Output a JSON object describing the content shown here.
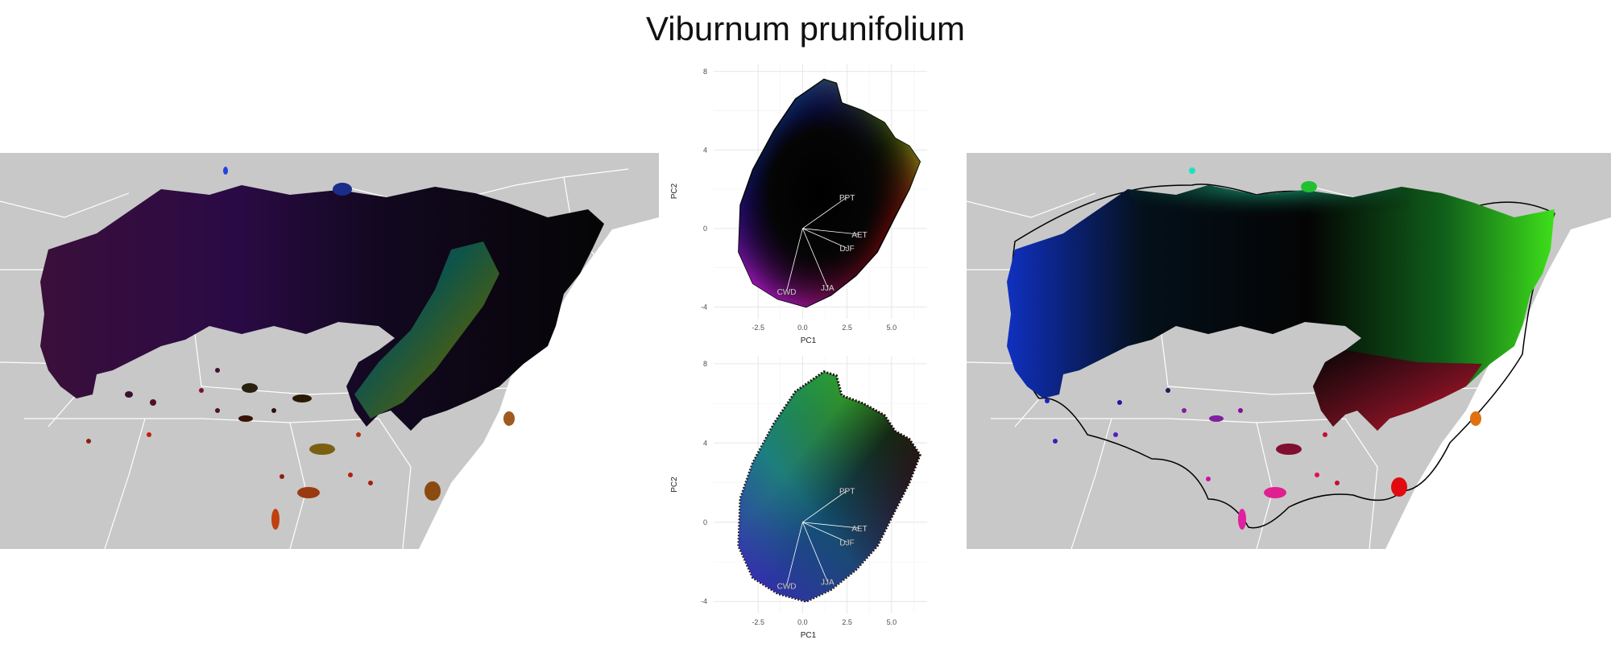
{
  "title": "Viburnum prunifolium",
  "colors": {
    "map_background": "#c8c8c8",
    "border": "#ffffff",
    "grid": "#e6e6e6",
    "hull": "#000000"
  },
  "chart_data": [
    {
      "type": "scatter",
      "panel": "pca-colorspace",
      "xlabel": "PC1",
      "ylabel": "PC2",
      "xlim": [
        -5,
        7
      ],
      "ylim": [
        -4.6,
        8.4
      ],
      "xticks": [
        "-2.5",
        "0.0",
        "2.5",
        "5.0"
      ],
      "yticks": [
        "-4",
        "0",
        "4",
        "8"
      ],
      "grid": true,
      "vectors": [
        {
          "label": "PPT",
          "x": 2.5,
          "y": 1.6
        },
        {
          "label": "AET",
          "x": 3.2,
          "y": -0.3
        },
        {
          "label": "DJF",
          "x": 2.5,
          "y": -1.0
        },
        {
          "label": "CWD",
          "x": -0.9,
          "y": -3.2
        },
        {
          "label": "JJA",
          "x": 1.4,
          "y": -3.0
        }
      ]
    },
    {
      "type": "scatter",
      "panel": "pca-points",
      "xlabel": "PC1",
      "ylabel": "PC2",
      "xlim": [
        -5,
        7
      ],
      "ylim": [
        -4.6,
        8.4
      ],
      "xticks": [
        "-2.5",
        "0.0",
        "2.5",
        "5.0"
      ],
      "yticks": [
        "-4",
        "0",
        "4",
        "8"
      ],
      "grid": true,
      "vectors": [
        {
          "label": "PPT",
          "x": 2.5,
          "y": 1.6
        },
        {
          "label": "AET",
          "x": 3.2,
          "y": -0.3
        },
        {
          "label": "DJF",
          "x": 2.5,
          "y": -1.0
        },
        {
          "label": "CWD",
          "x": -0.9,
          "y": -3.2
        },
        {
          "label": "JJA",
          "x": 1.4,
          "y": -3.0
        }
      ]
    }
  ]
}
